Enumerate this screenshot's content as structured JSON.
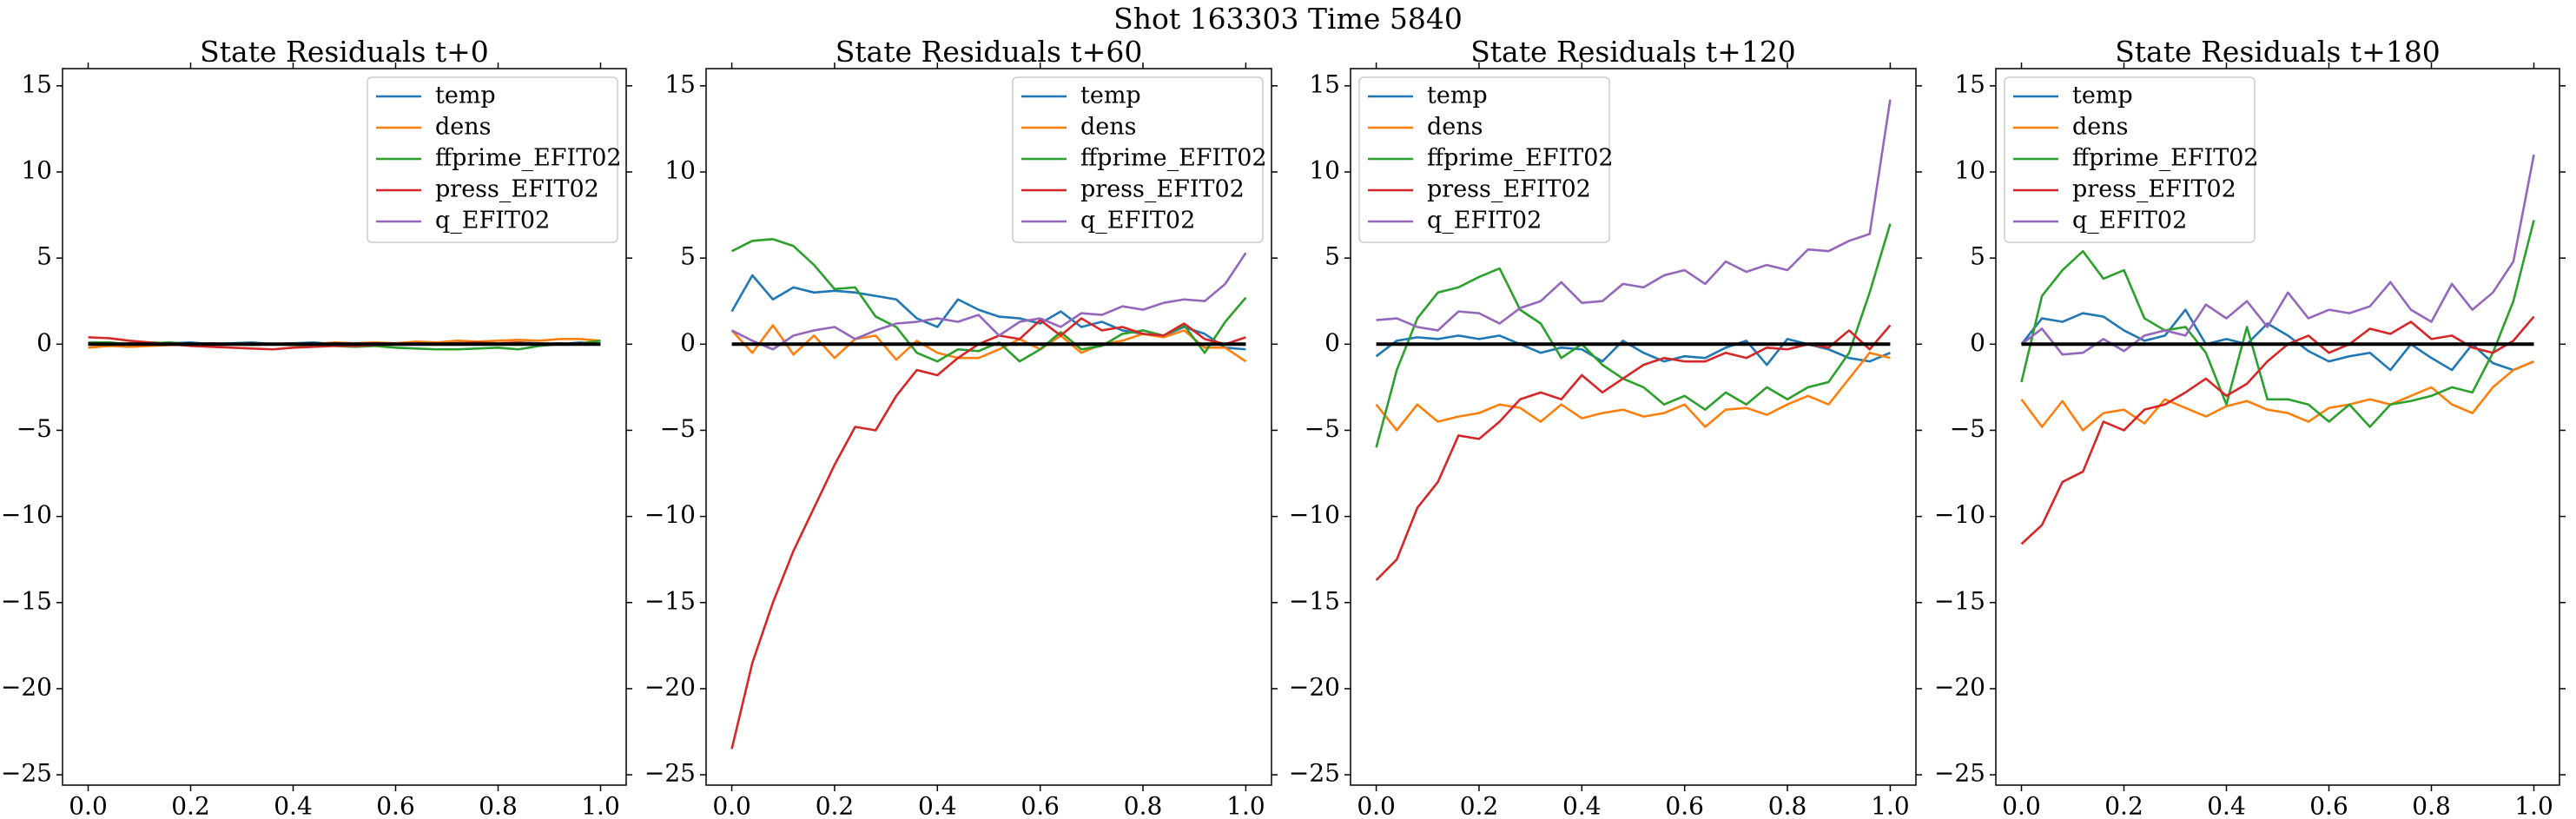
{
  "title": "Shot 163303   Time 5840",
  "chart_data": [
    {
      "type": "line",
      "title": "State Residuals t+0",
      "legend": "upper right",
      "hline": 0,
      "x": [
        0,
        0.04,
        0.08,
        0.12,
        0.16,
        0.2,
        0.24,
        0.28,
        0.32,
        0.36,
        0.4,
        0.44,
        0.48,
        0.52,
        0.56,
        0.6,
        0.64,
        0.68,
        0.72,
        0.76,
        0.8,
        0.84,
        0.88,
        0.92,
        0.96,
        1
      ],
      "xlim": [
        -0.05,
        1.05
      ],
      "ylim": [
        -25.6,
        16
      ],
      "xticks": [
        {
          "value": 0,
          "label": "0.0"
        },
        0.2,
        0.4,
        0.6,
        0.8,
        {
          "value": 1,
          "label": "1.0"
        }
      ],
      "yticks": [
        {
          "value": -25,
          "label": "−25"
        },
        {
          "value": -20,
          "label": "−20"
        },
        {
          "value": -15,
          "label": "−15"
        },
        {
          "value": -10,
          "label": "−10"
        },
        {
          "value": -5,
          "label": "−5"
        },
        0,
        5,
        10,
        15
      ],
      "series": [
        {
          "name": "temp",
          "color": "#1f77b4",
          "values": [
            0.0,
            0.1,
            0.0,
            0.1,
            0.05,
            0.1,
            0.0,
            0.05,
            0.1,
            0.0,
            0.05,
            0.1,
            0.0,
            0.05,
            0.0,
            0.05,
            0.1,
            0.0,
            0.1,
            0.05,
            0.0,
            0.1,
            0.05,
            0.0,
            0.1,
            0.0
          ]
        },
        {
          "name": "dens",
          "color": "#ff7f0e",
          "values": [
            -0.2,
            -0.1,
            -0.15,
            -0.1,
            -0.05,
            0.0,
            -0.05,
            0.0,
            0.05,
            0.0,
            0.05,
            0.0,
            0.1,
            0.05,
            0.1,
            0.05,
            0.15,
            0.1,
            0.2,
            0.15,
            0.2,
            0.25,
            0.2,
            0.3,
            0.3,
            0.2
          ]
        },
        {
          "name": "ffprime_EFIT02",
          "color": "#2ca02c",
          "values": [
            0.1,
            0.1,
            0.0,
            0.05,
            0.1,
            0.0,
            0.05,
            0.0,
            -0.05,
            0.0,
            -0.05,
            -0.1,
            -0.1,
            -0.15,
            -0.1,
            -0.2,
            -0.25,
            -0.3,
            -0.3,
            -0.25,
            -0.2,
            -0.3,
            -0.1,
            0.0,
            0.05,
            0.2
          ]
        },
        {
          "name": "press_EFIT02",
          "color": "#d62728",
          "values": [
            0.4,
            0.35,
            0.2,
            0.1,
            0.0,
            -0.1,
            -0.15,
            -0.2,
            -0.25,
            -0.3,
            -0.2,
            -0.15,
            -0.1,
            -0.1,
            -0.05,
            0.0,
            0.05,
            0.0,
            0.05,
            0.1,
            0.05,
            0.1,
            0.0,
            0.05,
            0.0,
            0.0
          ]
        },
        {
          "name": "q_EFIT02",
          "color": "#9467bd",
          "values": [
            0.05,
            0.0,
            0.05,
            0.0,
            0.05,
            0.0,
            0.05,
            0.0,
            0.05,
            0.0,
            0.05,
            0.0,
            0.05,
            0.0,
            0.05,
            0.0,
            0.05,
            0.0,
            0.05,
            0.0,
            0.05,
            0.0,
            0.05,
            0.0,
            0.05,
            0.0
          ]
        }
      ]
    },
    {
      "type": "line",
      "title": "State Residuals t+60",
      "legend": "upper right",
      "hline": 0,
      "x": [
        0,
        0.04,
        0.08,
        0.12,
        0.16,
        0.2,
        0.24,
        0.28,
        0.32,
        0.36,
        0.4,
        0.44,
        0.48,
        0.52,
        0.56,
        0.6,
        0.64,
        0.68,
        0.72,
        0.76,
        0.8,
        0.84,
        0.88,
        0.92,
        0.96,
        1
      ],
      "xlim": [
        -0.05,
        1.05
      ],
      "ylim": [
        -25.6,
        16
      ],
      "xticks": [
        {
          "value": 0,
          "label": "0.0"
        },
        0.2,
        0.4,
        0.6,
        0.8,
        {
          "value": 1,
          "label": "1.0"
        }
      ],
      "yticks": [
        {
          "value": -25,
          "label": "−25"
        },
        {
          "value": -20,
          "label": "−20"
        },
        {
          "value": -15,
          "label": "−15"
        },
        {
          "value": -10,
          "label": "−10"
        },
        {
          "value": -5,
          "label": "−5"
        },
        0,
        5,
        10,
        15
      ],
      "series": [
        {
          "name": "temp",
          "color": "#1f77b4",
          "values": [
            1.9,
            4.0,
            2.6,
            3.3,
            3.0,
            3.1,
            3.0,
            2.8,
            2.6,
            1.5,
            1.0,
            2.6,
            2.0,
            1.6,
            1.5,
            1.2,
            1.9,
            1.0,
            1.3,
            0.8,
            0.6,
            0.5,
            1.0,
            0.6,
            -0.2,
            -0.3
          ]
        },
        {
          "name": "dens",
          "color": "#ff7f0e",
          "values": [
            0.8,
            -0.5,
            1.1,
            -0.6,
            0.5,
            -0.8,
            0.3,
            0.5,
            -0.9,
            0.2,
            -0.5,
            -0.8,
            -0.8,
            -0.3,
            0.3,
            -0.3,
            0.5,
            -0.5,
            0.0,
            0.2,
            0.6,
            0.4,
            0.8,
            -0.2,
            -0.2,
            -1.0
          ]
        },
        {
          "name": "ffprime_EFIT02",
          "color": "#2ca02c",
          "values": [
            5.4,
            6.0,
            6.1,
            5.7,
            4.6,
            3.2,
            3.3,
            1.6,
            1.0,
            -0.5,
            -1.0,
            -0.3,
            -0.4,
            0.1,
            -1.0,
            -0.3,
            0.7,
            -0.3,
            -0.1,
            0.6,
            0.8,
            0.5,
            1.1,
            -0.5,
            1.3,
            2.7
          ]
        },
        {
          "name": "press_EFIT02",
          "color": "#d62728",
          "values": [
            -23.5,
            -18.5,
            -15,
            -12,
            -9.5,
            -7,
            -4.8,
            -5,
            -3,
            -1.5,
            -1.8,
            -0.8,
            0,
            0.5,
            0.3,
            1.4,
            0.5,
            1.5,
            0.8,
            1.0,
            0.6,
            0.5,
            1.2,
            0.3,
            0.0,
            0.4
          ]
        },
        {
          "name": "q_EFIT02",
          "color": "#9467bd",
          "values": [
            0.8,
            0.2,
            -0.3,
            0.5,
            0.8,
            1.0,
            0.3,
            0.8,
            1.2,
            1.3,
            1.5,
            1.3,
            1.7,
            0.5,
            1.3,
            1.5,
            1.0,
            1.8,
            1.7,
            2.2,
            2.0,
            2.4,
            2.6,
            2.5,
            3.5,
            5.3
          ]
        }
      ]
    },
    {
      "type": "line",
      "title": "State Residuals t+120",
      "legend": "upper left",
      "hline": 0,
      "x": [
        0,
        0.04,
        0.08,
        0.12,
        0.16,
        0.2,
        0.24,
        0.28,
        0.32,
        0.36,
        0.4,
        0.44,
        0.48,
        0.52,
        0.56,
        0.6,
        0.64,
        0.68,
        0.72,
        0.76,
        0.8,
        0.84,
        0.88,
        0.92,
        0.96,
        1
      ],
      "xlim": [
        -0.05,
        1.05
      ],
      "ylim": [
        -25.6,
        16
      ],
      "xticks": [
        {
          "value": 0,
          "label": "0.0"
        },
        0.2,
        0.4,
        0.6,
        0.8,
        {
          "value": 1,
          "label": "1.0"
        }
      ],
      "yticks": [
        {
          "value": -25,
          "label": "−25"
        },
        {
          "value": -20,
          "label": "−20"
        },
        {
          "value": -15,
          "label": "−15"
        },
        {
          "value": -10,
          "label": "−10"
        },
        {
          "value": -5,
          "label": "−5"
        },
        0,
        5,
        10,
        15
      ],
      "series": [
        {
          "name": "temp",
          "color": "#1f77b4",
          "values": [
            -0.7,
            0.2,
            0.4,
            0.3,
            0.5,
            0.3,
            0.5,
            0.0,
            -0.5,
            -0.2,
            -0.3,
            -1.0,
            0.2,
            -0.5,
            -1.0,
            -0.7,
            -0.8,
            -0.2,
            0.2,
            -1.2,
            0.3,
            0.0,
            -0.3,
            -0.8,
            -1.0,
            -0.5
          ]
        },
        {
          "name": "dens",
          "color": "#ff7f0e",
          "values": [
            -3.5,
            -5,
            -3.5,
            -4.5,
            -4.2,
            -4,
            -3.5,
            -3.7,
            -4.5,
            -3.5,
            -4.3,
            -4,
            -3.8,
            -4.2,
            -4.0,
            -3.5,
            -4.8,
            -3.8,
            -3.7,
            -4.1,
            -3.5,
            -3.0,
            -3.5,
            -2.0,
            -0.5,
            -0.8
          ]
        },
        {
          "name": "ffprime_EFIT02",
          "color": "#2ca02c",
          "values": [
            -6,
            -1.5,
            1.5,
            3,
            3.3,
            3.9,
            4.4,
            2.0,
            1.2,
            -0.8,
            0.0,
            -1.2,
            -2,
            -2.5,
            -3.5,
            -3,
            -3.8,
            -2.8,
            -3.5,
            -2.5,
            -3.2,
            -2.5,
            -2.2,
            -0.5,
            3.0,
            7.0
          ]
        },
        {
          "name": "press_EFIT02",
          "color": "#d62728",
          "values": [
            -13.7,
            -12.5,
            -9.5,
            -8,
            -5.3,
            -5.5,
            -4.5,
            -3.2,
            -2.8,
            -3.2,
            -1.8,
            -2.8,
            -2.0,
            -1.2,
            -0.8,
            -1.0,
            -1.0,
            -0.5,
            -0.8,
            -0.2,
            -0.3,
            0.0,
            -0.2,
            0.8,
            -0.3,
            1.1
          ]
        },
        {
          "name": "q_EFIT02",
          "color": "#9467bd",
          "values": [
            1.4,
            1.5,
            1.0,
            0.8,
            1.9,
            1.8,
            1.2,
            2.1,
            2.5,
            3.6,
            2.4,
            2.5,
            3.5,
            3.3,
            4.0,
            4.3,
            3.5,
            4.8,
            4.2,
            4.6,
            4.3,
            5.5,
            5.4,
            6.0,
            6.4,
            14.2
          ]
        }
      ]
    },
    {
      "type": "line",
      "title": "State Residuals t+180",
      "legend": "upper left",
      "hline": 0,
      "x": [
        0,
        0.04,
        0.08,
        0.12,
        0.16,
        0.2,
        0.24,
        0.28,
        0.32,
        0.36,
        0.4,
        0.44,
        0.48,
        0.52,
        0.56,
        0.6,
        0.64,
        0.68,
        0.72,
        0.76,
        0.8,
        0.84,
        0.88,
        0.92,
        0.96,
        1
      ],
      "xlim": [
        -0.05,
        1.05
      ],
      "ylim": [
        -25.6,
        16
      ],
      "xticks": [
        {
          "value": 0,
          "label": "0.0"
        },
        0.2,
        0.4,
        0.6,
        0.8,
        {
          "value": 1,
          "label": "1.0"
        }
      ],
      "yticks": [
        {
          "value": -25,
          "label": "−25"
        },
        {
          "value": -20,
          "label": "−20"
        },
        {
          "value": -15,
          "label": "−15"
        },
        {
          "value": -10,
          "label": "−10"
        },
        {
          "value": -5,
          "label": "−5"
        },
        0,
        5,
        10,
        15
      ],
      "series": [
        {
          "name": "temp",
          "color": "#1f77b4",
          "values": [
            0,
            1.5,
            1.3,
            1.8,
            1.6,
            0.8,
            0.2,
            0.5,
            2.0,
            0.0,
            0.3,
            0.0,
            1.2,
            0.5,
            -0.4,
            -1.0,
            -0.7,
            -0.5,
            -1.5,
            0,
            -0.8,
            -1.5,
            0,
            -1.1,
            -1.5,
            -1.0
          ]
        },
        {
          "name": "dens",
          "color": "#ff7f0e",
          "values": [
            -3.2,
            -4.8,
            -3.3,
            -5.0,
            -4.0,
            -3.8,
            -4.6,
            -3.2,
            -3.7,
            -4.2,
            -3.6,
            -3.3,
            -3.8,
            -4.0,
            -4.5,
            -3.7,
            -3.5,
            -3.2,
            -3.5,
            -3.0,
            -2.5,
            -3.5,
            -4.0,
            -2.5,
            -1.5,
            -1.0
          ]
        },
        {
          "name": "ffprime_EFIT02",
          "color": "#2ca02c",
          "values": [
            -2.2,
            2.8,
            4.3,
            5.4,
            3.8,
            4.3,
            1.5,
            0.8,
            1.0,
            -0.5,
            -3.5,
            1.0,
            -3.2,
            -3.2,
            -3.5,
            -4.5,
            -3.5,
            -4.8,
            -3.5,
            -3.3,
            -3.0,
            -2.5,
            -2.8,
            -0.5,
            2.5,
            7.2
          ]
        },
        {
          "name": "press_EFIT02",
          "color": "#d62728",
          "values": [
            -11.6,
            -10.5,
            -8,
            -7.4,
            -4.5,
            -5,
            -3.8,
            -3.5,
            -2.8,
            -2.0,
            -3.0,
            -2.3,
            -1.0,
            0.0,
            0.5,
            -0.5,
            0.0,
            0.9,
            0.6,
            1.3,
            0.3,
            0.5,
            -0.2,
            -0.5,
            0.2,
            1.6
          ]
        },
        {
          "name": "q_EFIT02",
          "color": "#9467bd",
          "values": [
            0.0,
            0.9,
            -0.6,
            -0.5,
            0.3,
            -0.4,
            0.5,
            0.8,
            0.5,
            2.3,
            1.5,
            2.5,
            1.0,
            3.0,
            1.5,
            2.0,
            1.8,
            2.2,
            3.6,
            2.0,
            1.3,
            3.5,
            2.0,
            3.0,
            4.8,
            11.0
          ]
        }
      ]
    }
  ]
}
